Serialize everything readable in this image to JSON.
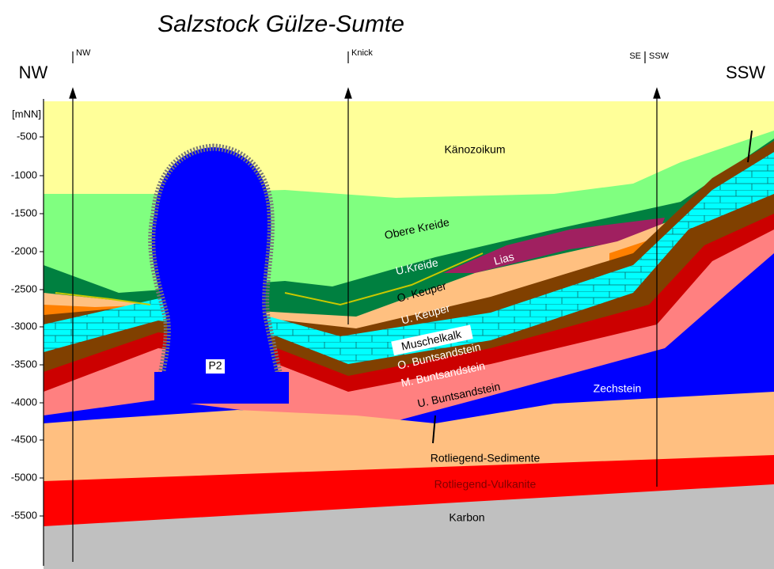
{
  "title": "Salzstock Gülze-Sumte",
  "directions": {
    "left": "NW",
    "right": "SSW"
  },
  "profile_marks": [
    "NW",
    "Knick",
    "SE",
    "SSW"
  ],
  "axis": {
    "unit": "[mNN]",
    "ticks": [
      "-500",
      "-1000",
      "-1500",
      "-2000",
      "-2500",
      "-3000",
      "-3500",
      "-4000",
      "-4500",
      "-5000",
      "-5500"
    ]
  },
  "layers": {
    "kaenozoikum": "Känozoikum",
    "obere_kreide": "Obere Kreide",
    "u_kreide": "U.Kreide",
    "lias": "Lias",
    "o_keuper": "O. Keuper",
    "u_keuper": "U. Keuper",
    "muschelkalk": "Muschelkalk",
    "o_bunt": "O. Buntsandstein",
    "m_bunt": "M. Buntsandstein",
    "u_bunt": "U. Buntsandstein",
    "zechstein": "Zechstein",
    "salt": "P2",
    "rotliegend_sed": "Rotliegend-Sedimente",
    "rotliegend_vulk": "Rotliegend-Vulkanite",
    "karbon": "Karbon"
  }
}
